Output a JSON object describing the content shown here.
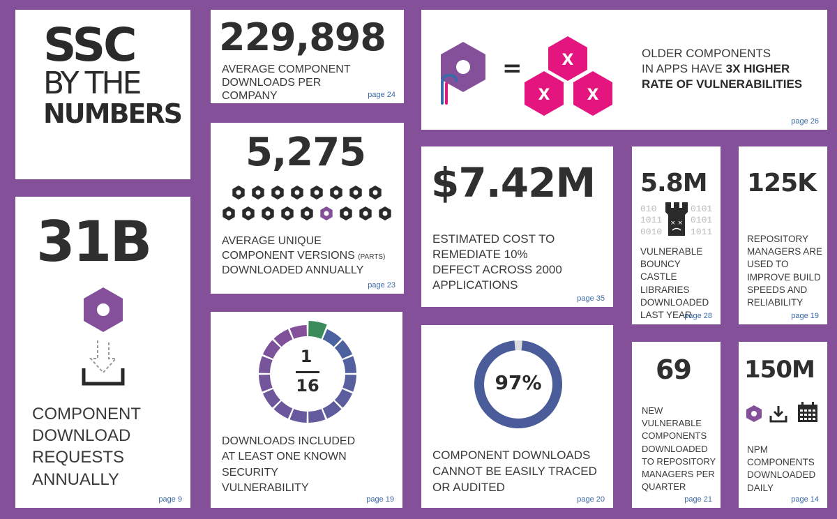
{
  "title": {
    "line1": "SSC",
    "line2": "BY THE",
    "line3": "NUMBERS"
  },
  "downloads": {
    "value": "229,898",
    "label": "AVERAGE COMPONENT DOWNLOADS PER COMPANY",
    "page": "page 24"
  },
  "older": {
    "line1": "OLDER COMPONENTS",
    "line2": "IN APPS HAVE",
    "highlight": "3X HIGHER",
    "line3": "RATE OF VULNERABILITIES",
    "page": "page 26",
    "equals": "=",
    "x": "X"
  },
  "versions": {
    "value": "5,275",
    "label_line1": "AVERAGE UNIQUE",
    "label_line2": "COMPONENT VERSIONS",
    "label_small": "(PARTS)",
    "label_line3": "DOWNLOADED ANNUALLY",
    "page": "page 23"
  },
  "cost": {
    "value": "$7.42M",
    "label": "ESTIMATED COST TO REMEDIATE 10% DEFECT ACROSS 2000 APPLICATIONS",
    "page": "page 35"
  },
  "bouncy": {
    "value": "5.8M",
    "label": "VULNERABLE BOUNCY CASTLE LIBRARIES DOWNLOADED LAST YEAR",
    "page": "page 28",
    "binary_left": [
      "010",
      "1011",
      "0010"
    ],
    "binary_right": [
      "0101",
      "0101",
      "1011"
    ]
  },
  "repo": {
    "value": "125K",
    "label": "REPOSITORY MANAGERS ARE USED TO IMPROVE BUILD SPEEDS AND RELIABILITY",
    "page": "page 19"
  },
  "requests": {
    "value": "31B",
    "label": "COMPONENT DOWNLOAD REQUESTS ANNUALLY",
    "page": "page 9"
  },
  "vuln": {
    "numerator": "1",
    "denominator": "16",
    "label": "DOWNLOADS INCLUDED AT LEAST ONE KNOWN SECURITY VULNERABILITY",
    "page": "page 19"
  },
  "traced": {
    "value": "97%",
    "percent": 97,
    "label": "COMPONENT DOWNLOADS CANNOT BE EASILY TRACED OR AUDITED",
    "page": "page 20"
  },
  "new_vuln": {
    "value": "69",
    "label": "NEW VULNERABLE COMPONENTS DOWNLOADED TO REPOSITORY MANAGERS PER QUARTER",
    "page": "page 21"
  },
  "npm": {
    "value": "150M",
    "label": "NPM COMPONENTS DOWNLOADED DAILY",
    "page": "page 14"
  },
  "colors": {
    "purple": "#84509a",
    "magenta": "#e5157f",
    "blue": "#4a5d9a",
    "green": "#3b8c5a"
  }
}
